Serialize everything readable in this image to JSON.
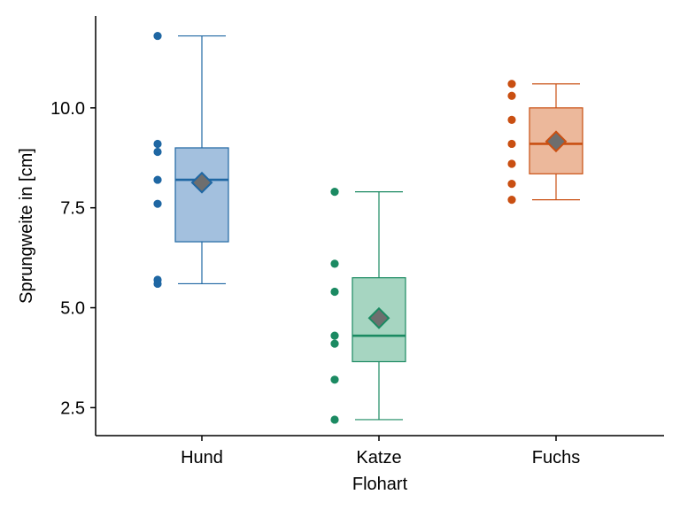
{
  "chart_data": {
    "type": "box",
    "title": "",
    "xlabel": "Flohart",
    "ylabel": "Sprungweite in [cm]",
    "ylim": [
      1.8,
      12.3
    ],
    "yticks": [
      2.5,
      5.0,
      7.5,
      10.0
    ],
    "ytick_labels": [
      "2.5",
      "5.0",
      "7.5",
      "10.0"
    ],
    "categories": [
      "Hund",
      "Katze",
      "Fuchs"
    ],
    "grid": false,
    "legend": "none",
    "groups": [
      {
        "name": "Hund",
        "color": "#1f67a3",
        "fill": "#a3c0de",
        "points": [
          11.8,
          9.1,
          8.9,
          8.2,
          7.6,
          5.7,
          5.6
        ],
        "whisker_low": 5.6,
        "q1": 6.65,
        "median": 8.2,
        "q3": 9.0,
        "whisker_high": 11.8,
        "mean": 8.13
      },
      {
        "name": "Katze",
        "color": "#1b8a62",
        "fill": "#a6d5c1",
        "points": [
          7.9,
          6.1,
          5.4,
          4.3,
          4.1,
          3.2,
          2.2
        ],
        "whisker_low": 2.2,
        "q1": 3.65,
        "median": 4.3,
        "q3": 5.75,
        "whisker_high": 7.9,
        "mean": 4.74
      },
      {
        "name": "Fuchs",
        "color": "#c94f12",
        "fill": "#ecb89b",
        "points": [
          10.6,
          10.3,
          9.7,
          9.1,
          8.6,
          8.1,
          7.7
        ],
        "whisker_low": 7.7,
        "q1": 8.35,
        "median": 9.1,
        "q3": 10.0,
        "whisker_high": 10.6,
        "mean": 9.16
      }
    ],
    "mean_marker_color": "#6e6e6e"
  }
}
